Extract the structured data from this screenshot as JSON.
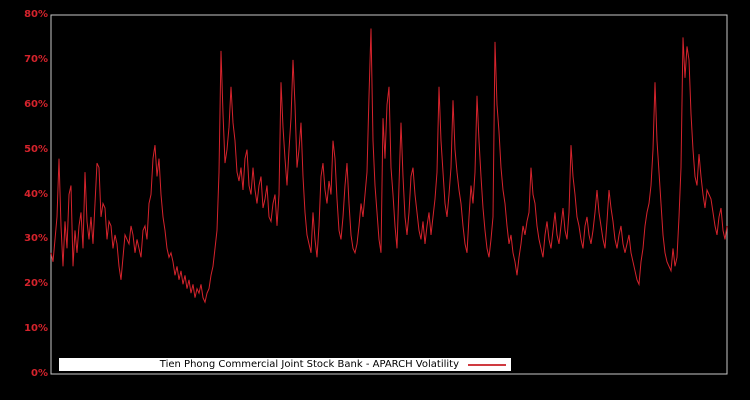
{
  "window": {
    "background_color": "#000000"
  },
  "chart_data": {
    "type": "line",
    "title": "Tien Phong Commercial Joint Stock Bank - APARCH Volatility",
    "unit": "%",
    "line_color": "#d5232c",
    "legend": {
      "label": "Tien Phong Commercial Joint Stock Bank - APARCH Volatility",
      "position": "bottom-center",
      "background": "#ffffff",
      "text_color": "#000000",
      "sample_line_color": "#cf3a40"
    },
    "axis": {
      "border_color": "#c8c8c8",
      "tick_label_color": "#d5232c",
      "grid": false,
      "ylim": [
        0,
        80
      ],
      "ytick_values": [
        0,
        10,
        20,
        30,
        40,
        50,
        60,
        70,
        80
      ],
      "yticks": [
        "0%",
        "10%",
        "20%",
        "30%",
        "40%",
        "50%",
        "60%",
        "70%",
        "80%"
      ],
      "xticks": []
    },
    "values": [
      27,
      25,
      30,
      35,
      48,
      33,
      24,
      34,
      28,
      40,
      42,
      24,
      32,
      27,
      33,
      36,
      28,
      45,
      34,
      30,
      35,
      29,
      38,
      47,
      46,
      35,
      38,
      37,
      30,
      34,
      33,
      28,
      31,
      29,
      24,
      21,
      26,
      31,
      30,
      29,
      33,
      31,
      27,
      30,
      28,
      26,
      32,
      33,
      30,
      38,
      40,
      48,
      51,
      44,
      48,
      40,
      35,
      32,
      28,
      26,
      27,
      25,
      22,
      24,
      21,
      23,
      20,
      22,
      19,
      21,
      18,
      20,
      17,
      19,
      18,
      20,
      17,
      16,
      18,
      19,
      22,
      24,
      28,
      32,
      45,
      72,
      58,
      47,
      50,
      55,
      64,
      56,
      52,
      45,
      43,
      46,
      41,
      48,
      50,
      42,
      40,
      46,
      41,
      38,
      42,
      44,
      37,
      39,
      42,
      35,
      34,
      38,
      40,
      33,
      40,
      65,
      55,
      48,
      42,
      50,
      57,
      70,
      60,
      46,
      50,
      56,
      44,
      36,
      31,
      29,
      27,
      36,
      30,
      26,
      33,
      44,
      47,
      41,
      38,
      43,
      40,
      52,
      48,
      39,
      32,
      30,
      35,
      42,
      47,
      38,
      31,
      28,
      27,
      29,
      33,
      38,
      35,
      40,
      45,
      62,
      77,
      52,
      42,
      36,
      30,
      27,
      57,
      48,
      60,
      64,
      46,
      40,
      33,
      28,
      42,
      56,
      44,
      35,
      31,
      36,
      44,
      46,
      40,
      36,
      32,
      30,
      34,
      29,
      33,
      36,
      31,
      35,
      39,
      45,
      64,
      52,
      45,
      38,
      35,
      40,
      46,
      61,
      50,
      45,
      41,
      38,
      33,
      29,
      27,
      35,
      42,
      38,
      45,
      62,
      52,
      44,
      37,
      32,
      28,
      26,
      30,
      35,
      74,
      60,
      54,
      46,
      41,
      38,
      33,
      29,
      31,
      27,
      25,
      22,
      26,
      29,
      33,
      31,
      34,
      36,
      46,
      40,
      38,
      33,
      30,
      28,
      26,
      31,
      34,
      30,
      28,
      32,
      36,
      31,
      29,
      33,
      37,
      32,
      30,
      36,
      51,
      44,
      40,
      35,
      33,
      30,
      28,
      33,
      35,
      31,
      29,
      32,
      36,
      41,
      36,
      33,
      30,
      28,
      34,
      41,
      37,
      34,
      30,
      28,
      31,
      33,
      29,
      27,
      29,
      31,
      27,
      25,
      23,
      21,
      20,
      25,
      28,
      33,
      36,
      38,
      42,
      50,
      65,
      52,
      45,
      38,
      31,
      27,
      25,
      24,
      23,
      28,
      24,
      26,
      35,
      46,
      75,
      66,
      73,
      70,
      58,
      50,
      44,
      42,
      49,
      44,
      40,
      37,
      41,
      40,
      39,
      36,
      33,
      31,
      35,
      37,
      32,
      30,
      33
    ]
  }
}
